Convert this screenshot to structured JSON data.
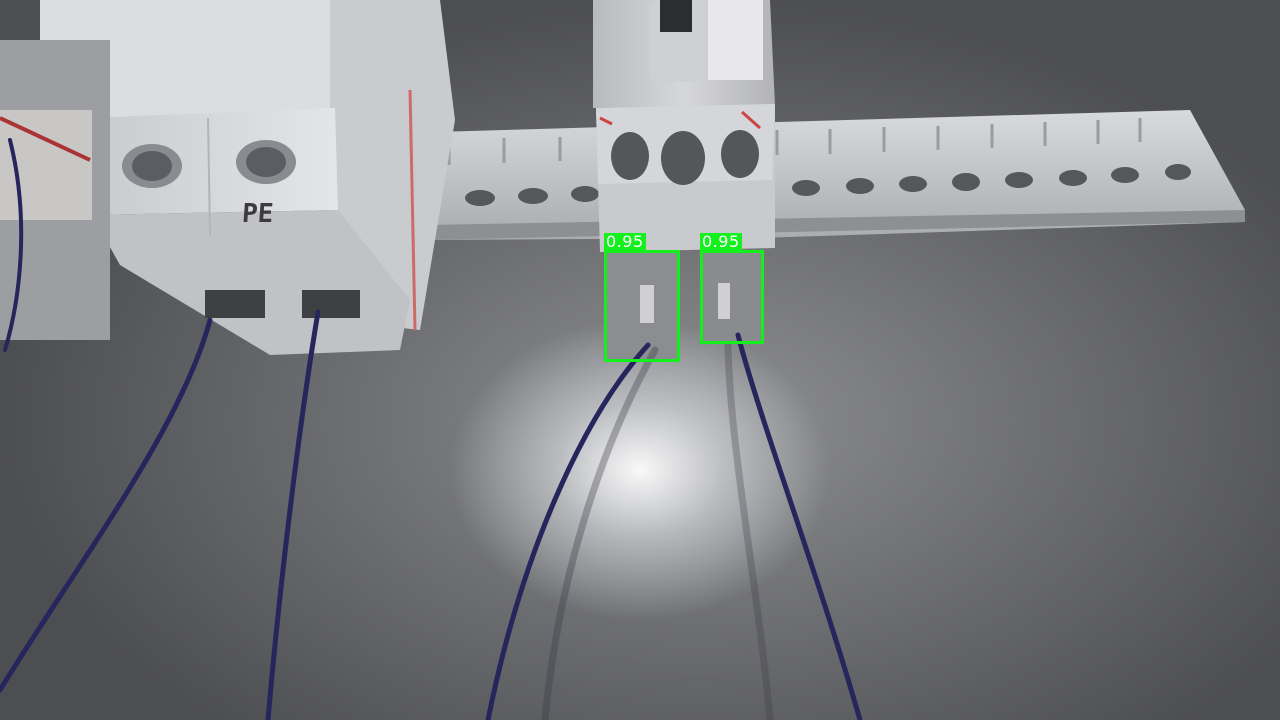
{
  "scene": {
    "printed_labels": {
      "terminal_marking": "PE"
    }
  },
  "detections": [
    {
      "confidence_label": "0.95"
    },
    {
      "confidence_label": "0.95"
    }
  ],
  "colors": {
    "detection_box": "#14f01e",
    "wire": "#26265c",
    "panel": "#6d6e72"
  }
}
